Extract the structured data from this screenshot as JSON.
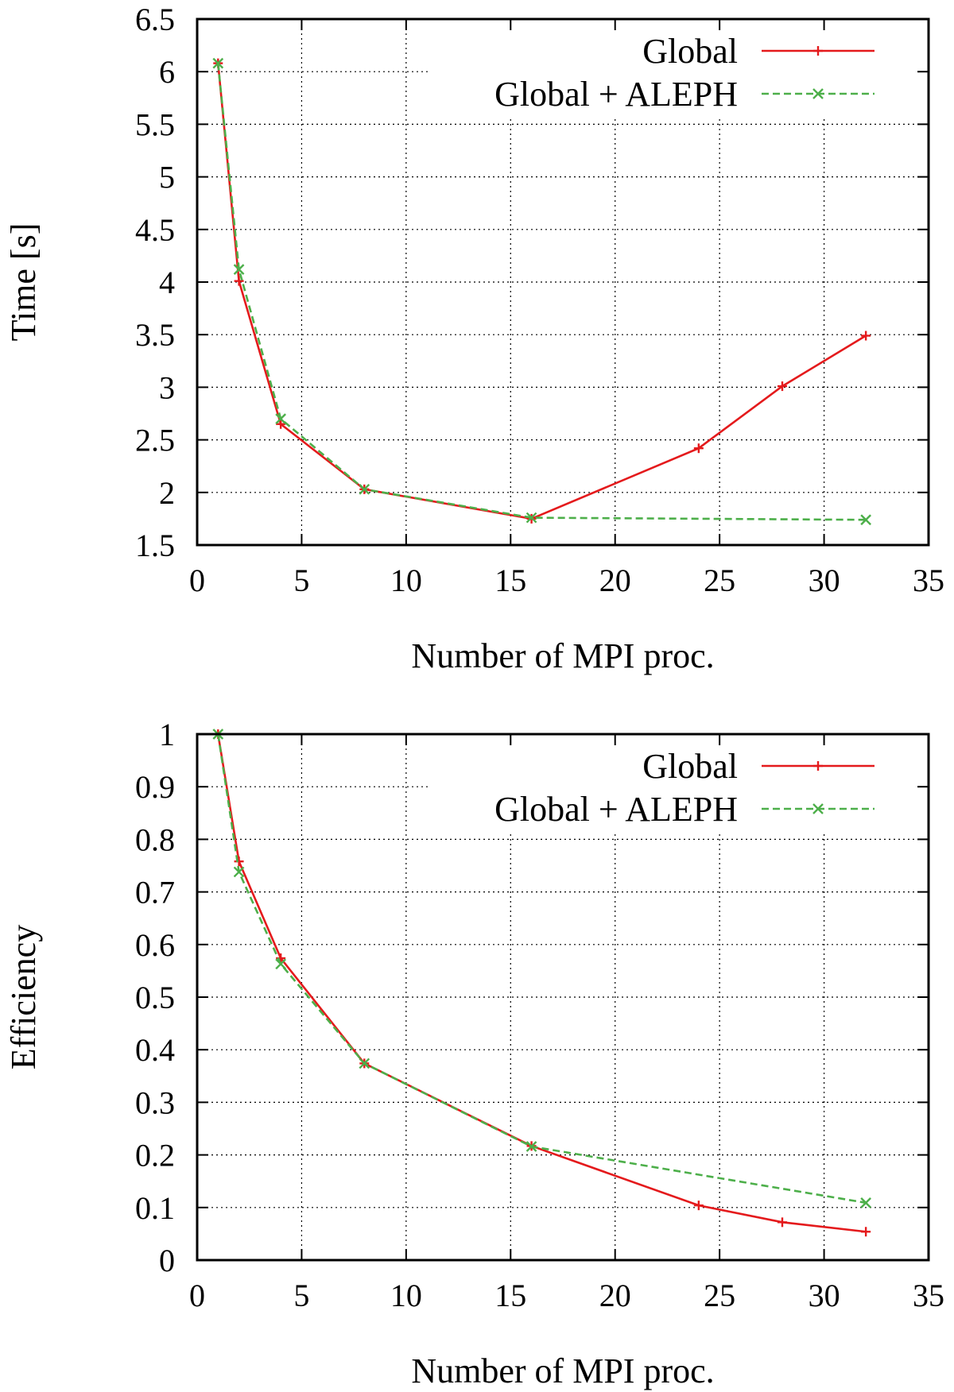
{
  "chart_data": [
    {
      "type": "line",
      "title": "",
      "xlabel": "Number of MPI proc.",
      "ylabel": "Time [s]",
      "xlim": [
        0,
        35
      ],
      "ylim": [
        1.5,
        6.5
      ],
      "xticks": [
        "0",
        "5",
        "10",
        "15",
        "20",
        "25",
        "30",
        "35"
      ],
      "yticks": [
        "1.5",
        "2",
        "2.5",
        "3",
        "3.5",
        "4",
        "4.5",
        "5",
        "5.5",
        "6",
        "6.5"
      ],
      "grid": true,
      "legend_position": "top-right",
      "series": [
        {
          "name": "Global",
          "color": "#e41a1c",
          "dash": "solid",
          "marker": "plus",
          "x": [
            1,
            2,
            4,
            8,
            16,
            24,
            28,
            32
          ],
          "y": [
            6.08,
            4.01,
            2.65,
            2.03,
            1.75,
            2.42,
            3.01,
            3.49
          ]
        },
        {
          "name": "Global + ALEPH",
          "color": "#4daf4a",
          "dash": "dashed",
          "marker": "cross",
          "x": [
            1,
            2,
            4,
            8,
            16,
            32
          ],
          "y": [
            6.08,
            4.12,
            2.7,
            2.03,
            1.76,
            1.74
          ]
        }
      ]
    },
    {
      "type": "line",
      "title": "",
      "xlabel": "Number of MPI proc.",
      "ylabel": "Efficiency",
      "xlim": [
        0,
        35
      ],
      "ylim": [
        0,
        1
      ],
      "xticks": [
        "0",
        "5",
        "10",
        "15",
        "20",
        "25",
        "30",
        "35"
      ],
      "yticks": [
        "0",
        "0.1",
        "0.2",
        "0.3",
        "0.4",
        "0.5",
        "0.6",
        "0.7",
        "0.8",
        "0.9",
        "1"
      ],
      "grid": true,
      "legend_position": "top-right",
      "series": [
        {
          "name": "Global",
          "color": "#e41a1c",
          "dash": "solid",
          "marker": "plus",
          "x": [
            1,
            2,
            4,
            8,
            16,
            24,
            28,
            32
          ],
          "y": [
            1.0,
            0.758,
            0.574,
            0.374,
            0.217,
            0.104,
            0.072,
            0.054
          ]
        },
        {
          "name": "Global + ALEPH",
          "color": "#4daf4a",
          "dash": "dashed",
          "marker": "cross",
          "x": [
            1,
            2,
            4,
            8,
            16,
            32
          ],
          "y": [
            1.0,
            0.738,
            0.563,
            0.374,
            0.216,
            0.109
          ]
        }
      ]
    }
  ]
}
